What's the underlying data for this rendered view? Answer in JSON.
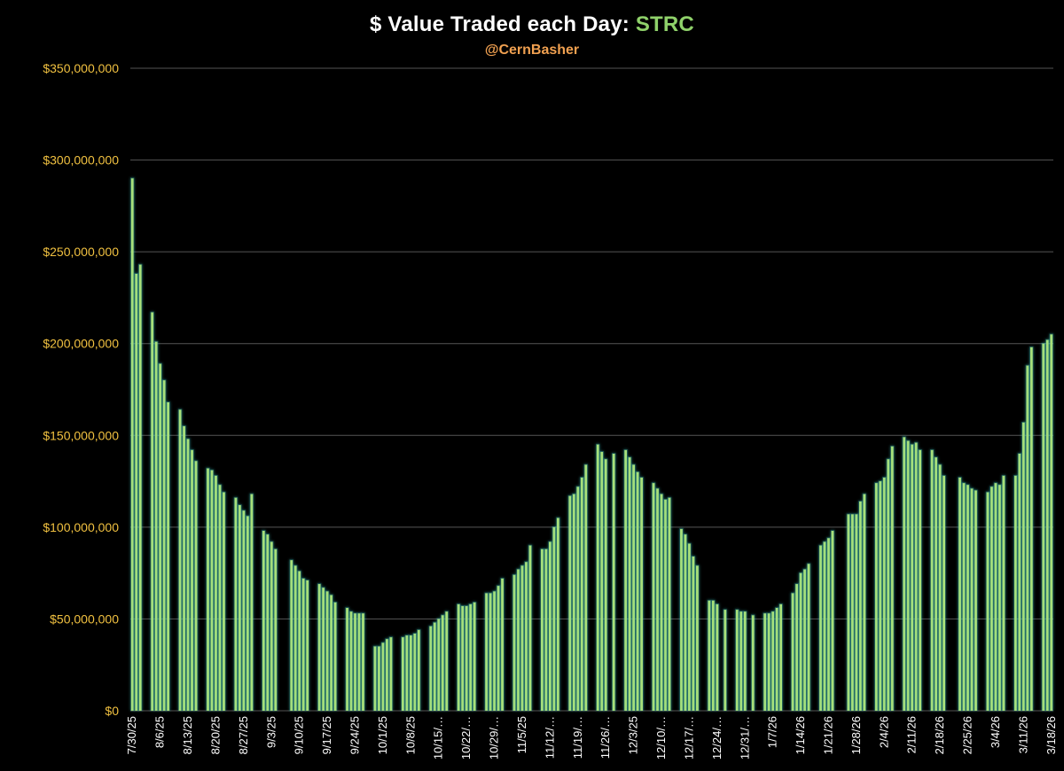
{
  "chart_data": {
    "type": "bar",
    "title_prefix": "$ Value Traded each Day: ",
    "title_ticker": "STRC",
    "subtitle": "@CernBasher",
    "xlabel": "",
    "ylabel": "",
    "ylim": [
      0,
      350000000
    ],
    "ytick_labels": [
      "$0",
      "$50,000,000",
      "$100,000,000",
      "$150,000,000",
      "$200,000,000",
      "$250,000,000",
      "$300,000,000",
      "$350,000,000"
    ],
    "ytick_values": [
      0,
      50000000,
      100000000,
      150000000,
      200000000,
      250000000,
      300000000,
      350000000
    ],
    "grid": true,
    "colors": {
      "bar": "#a8e07a",
      "bar_glow": "#3fc7c0",
      "axis_text": "#f0c040",
      "grid": "#555555",
      "title": "#ffffff",
      "ticker": "#8fd16a",
      "subtitle": "#f0a050",
      "x_text": "#ffffff"
    },
    "x_tick_labels": [
      "7/30/25",
      "8/6/25",
      "8/13/25",
      "8/20/25",
      "8/27/25",
      "9/3/25",
      "9/10/25",
      "9/17/25",
      "9/24/25",
      "10/1/25",
      "10/8/25",
      "10/15/…",
      "10/22/…",
      "10/29/…",
      "11/5/25",
      "11/12/…",
      "11/19/…",
      "11/26/…",
      "12/3/25",
      "12/10/…",
      "12/17/…",
      "12/24/…",
      "12/31/…",
      "1/7/26",
      "1/14/26",
      "1/21/26",
      "1/28/26",
      "2/4/26",
      "2/11/26",
      "2/18/26",
      "2/25/26",
      "3/4/26",
      "3/11/26",
      "3/18/26"
    ],
    "values": [
      290000000,
      238000000,
      243000000,
      0,
      0,
      217000000,
      201000000,
      189000000,
      180000000,
      168000000,
      0,
      0,
      164000000,
      155000000,
      148000000,
      142000000,
      136000000,
      0,
      0,
      132000000,
      131000000,
      128000000,
      123000000,
      119000000,
      0,
      0,
      116000000,
      112000000,
      109000000,
      106000000,
      118000000,
      0,
      0,
      98000000,
      96000000,
      92000000,
      88000000,
      0,
      0,
      0,
      82000000,
      79000000,
      76000000,
      72000000,
      71000000,
      0,
      0,
      69000000,
      67000000,
      65000000,
      63000000,
      59000000,
      0,
      0,
      56000000,
      54000000,
      53000000,
      53000000,
      53000000,
      0,
      0,
      35000000,
      35000000,
      37000000,
      39000000,
      40000000,
      0,
      0,
      40000000,
      41000000,
      41000000,
      42000000,
      44000000,
      0,
      0,
      46000000,
      48000000,
      50000000,
      52000000,
      54000000,
      0,
      0,
      58000000,
      57000000,
      57000000,
      58000000,
      59000000,
      0,
      0,
      64000000,
      64000000,
      65000000,
      68000000,
      72000000,
      0,
      0,
      74000000,
      77000000,
      79000000,
      81000000,
      90000000,
      0,
      0,
      88000000,
      88000000,
      92000000,
      100000000,
      105000000,
      0,
      0,
      117000000,
      118000000,
      122000000,
      127000000,
      134000000,
      0,
      0,
      145000000,
      141000000,
      137000000,
      0,
      140000000,
      0,
      0,
      142000000,
      138000000,
      134000000,
      130000000,
      127000000,
      0,
      0,
      124000000,
      121000000,
      118000000,
      115000000,
      116000000,
      0,
      0,
      99000000,
      96000000,
      91000000,
      84000000,
      79000000,
      0,
      0,
      60000000,
      60000000,
      58000000,
      0,
      55000000,
      0,
      0,
      55000000,
      54000000,
      54000000,
      0,
      52000000,
      0,
      0,
      53000000,
      53000000,
      54000000,
      56000000,
      58000000,
      0,
      0,
      64000000,
      69000000,
      75000000,
      77000000,
      80000000,
      0,
      0,
      90000000,
      92000000,
      94000000,
      98000000,
      0,
      0,
      0,
      107000000,
      107000000,
      107000000,
      114000000,
      118000000,
      0,
      0,
      124000000,
      125000000,
      127000000,
      137000000,
      144000000,
      0,
      0,
      149000000,
      147000000,
      145000000,
      146000000,
      142000000,
      0,
      0,
      142000000,
      138000000,
      134000000,
      128000000,
      0,
      0,
      0,
      127000000,
      124000000,
      123000000,
      121000000,
      120000000,
      0,
      0,
      119000000,
      122000000,
      124000000,
      123000000,
      128000000,
      0,
      0,
      128000000,
      140000000,
      157000000,
      188000000,
      198000000,
      0,
      0,
      200000000,
      202000000,
      205000000
    ]
  }
}
